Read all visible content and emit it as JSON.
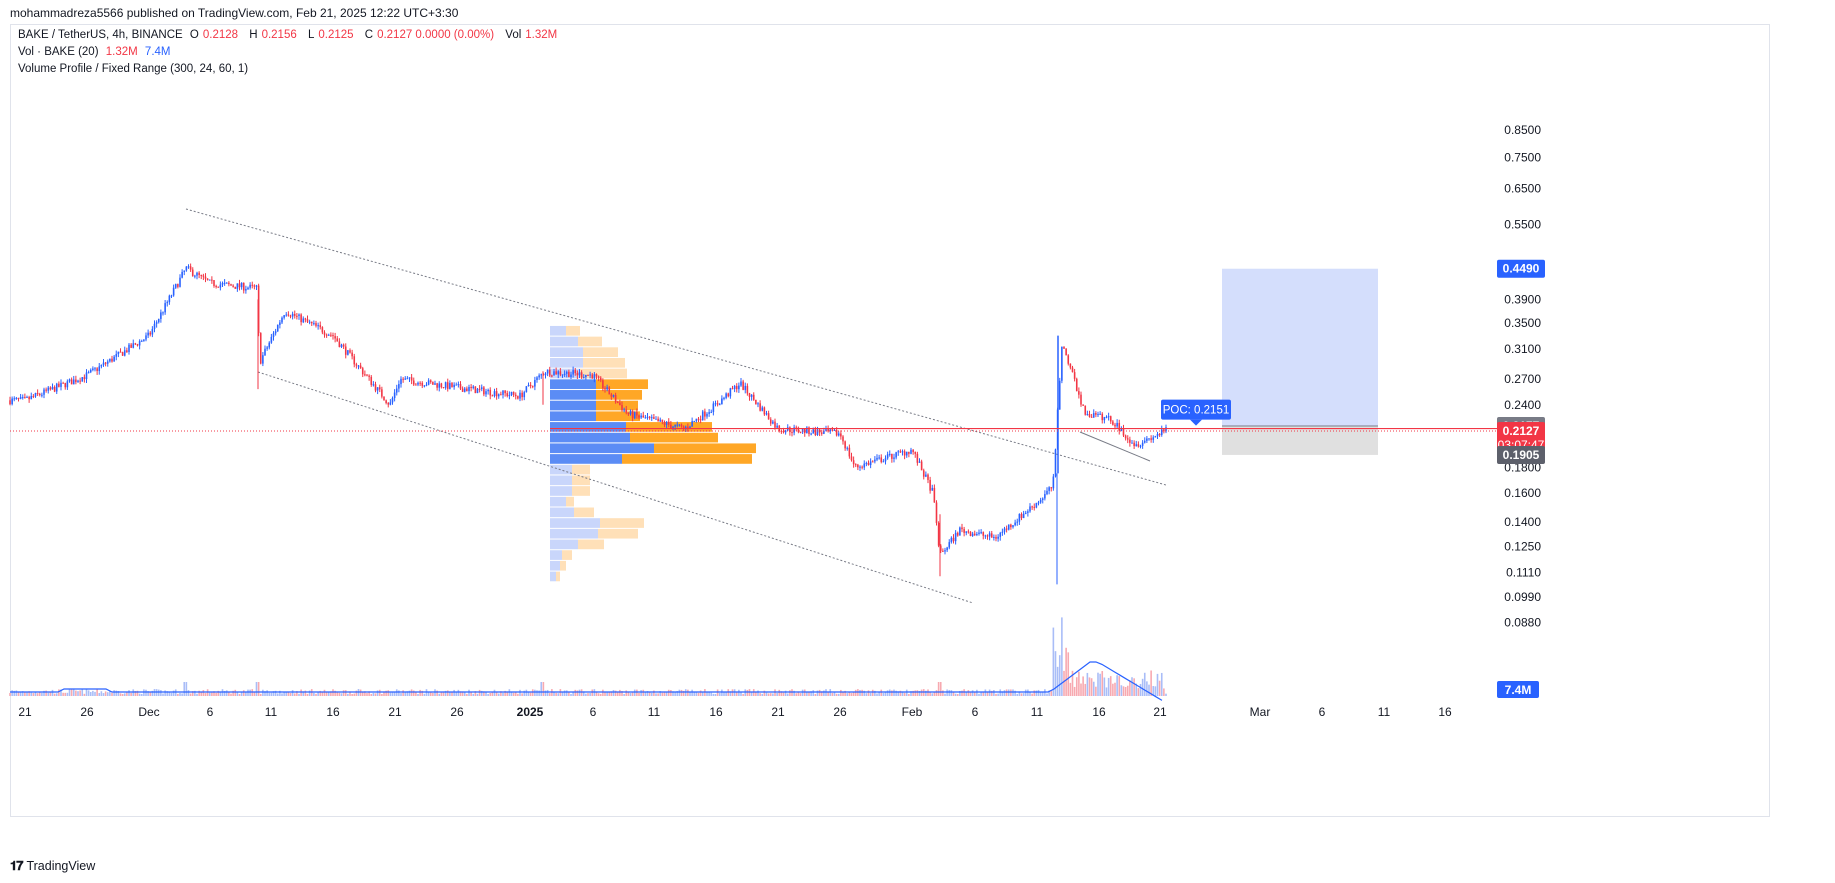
{
  "header": {
    "published": "mohammadreza5566 published on TradingView.com, Feb 21, 2025 12:22 UTC+3:30"
  },
  "legend": {
    "symbol": "BAKE / TetherUS, 4h, BINANCE",
    "o_label": "O",
    "o": "0.2128",
    "h_label": "H",
    "h": "0.2156",
    "l_label": "L",
    "l": "0.2125",
    "c_label": "C",
    "c": "0.2127 0.0000 (0.00%)",
    "vol_label": "Vol",
    "vol": "1.32M",
    "vol_study": "Vol · BAKE (20)",
    "vol_study_v1": "1.32M",
    "vol_study_v2": "7.4M",
    "vp_study": "Volume Profile / Fixed Range (300, 24, 60, 1)"
  },
  "price_axis": {
    "ticks": [
      "0.8500",
      "0.7500",
      "0.6500",
      "0.5500",
      "0.3900",
      "0.3500",
      "0.3100",
      "0.2700",
      "0.2400",
      "0.1800",
      "0.1600",
      "0.1400",
      "0.1250",
      "0.1110",
      "0.0990",
      "0.0880"
    ],
    "labels": {
      "target": "0.4490",
      "upper": "0.2177",
      "last": "0.2127",
      "countdown": "03:07:47",
      "stop": "0.1905",
      "volume": "7.4M"
    }
  },
  "time_axis": {
    "ticks": [
      "21",
      "26",
      "Dec",
      "6",
      "11",
      "16",
      "21",
      "26",
      "2025",
      "6",
      "11",
      "16",
      "21",
      "26",
      "Feb",
      "6",
      "11",
      "16",
      "21",
      "Mar",
      "6",
      "11",
      "16"
    ]
  },
  "poc_label": "POC: 0.2151",
  "footer": {
    "brand": "TradingView"
  },
  "colors": {
    "up": "#2962ff",
    "down": "#f23645",
    "vp_up": "#5b8cf5",
    "vp_down": "#ffa726",
    "vp_up_faint": "#c9d6fb",
    "vp_down_faint": "#ffe0b8",
    "target_zone": "#d4defc",
    "stop_zone": "#e0e0e0"
  },
  "chart_data": {
    "type": "candlestick",
    "symbol": "BAKE / TetherUS",
    "interval": "4h",
    "exchange": "BINANCE",
    "y_scale": "log",
    "ylim": [
      0.088,
      0.85
    ],
    "last_price": 0.2127,
    "poc": 0.2151,
    "position": {
      "entry": 0.2177,
      "target": 0.449,
      "stop": 0.1905
    },
    "approx_closes": [
      {
        "date": "Nov 21",
        "close": 0.245
      },
      {
        "date": "Nov 26",
        "close": 0.275
      },
      {
        "date": "Dec 1",
        "close": 0.33
      },
      {
        "date": "Dec 4",
        "close": 0.45
      },
      {
        "date": "Dec 6",
        "close": 0.42
      },
      {
        "date": "Dec 10",
        "close": 0.41
      },
      {
        "date": "Dec 11",
        "close": 0.29
      },
      {
        "date": "Dec 13",
        "close": 0.37
      },
      {
        "date": "Dec 17",
        "close": 0.33
      },
      {
        "date": "Dec 20",
        "close": 0.24
      },
      {
        "date": "Dec 22",
        "close": 0.27
      },
      {
        "date": "Dec 26",
        "close": 0.26
      },
      {
        "date": "Dec 30",
        "close": 0.25
      },
      {
        "date": "Jan 2",
        "close": 0.28
      },
      {
        "date": "Jan 6",
        "close": 0.275
      },
      {
        "date": "Jan 9",
        "close": 0.23
      },
      {
        "date": "Jan 13",
        "close": 0.215
      },
      {
        "date": "Jan 16",
        "close": 0.24
      },
      {
        "date": "Jan 18",
        "close": 0.265
      },
      {
        "date": "Jan 21",
        "close": 0.215
      },
      {
        "date": "Jan 26",
        "close": 0.21
      },
      {
        "date": "Jan 27",
        "close": 0.18
      },
      {
        "date": "Jan 31",
        "close": 0.195
      },
      {
        "date": "Feb 2",
        "close": 0.16
      },
      {
        "date": "Feb 3",
        "close": 0.12
      },
      {
        "date": "Feb 5",
        "close": 0.135
      },
      {
        "date": "Feb 8",
        "close": 0.13
      },
      {
        "date": "Feb 11",
        "close": 0.155
      },
      {
        "date": "Feb 12",
        "close": 0.165
      },
      {
        "date": "Feb 13",
        "close": 0.32
      },
      {
        "date": "Feb 15",
        "close": 0.23
      },
      {
        "date": "Feb 17",
        "close": 0.225
      },
      {
        "date": "Feb 19",
        "close": 0.2
      },
      {
        "date": "Feb 21",
        "close": 0.2127
      }
    ],
    "volume_last": "1.32M",
    "volume_ma": "7.4M"
  }
}
